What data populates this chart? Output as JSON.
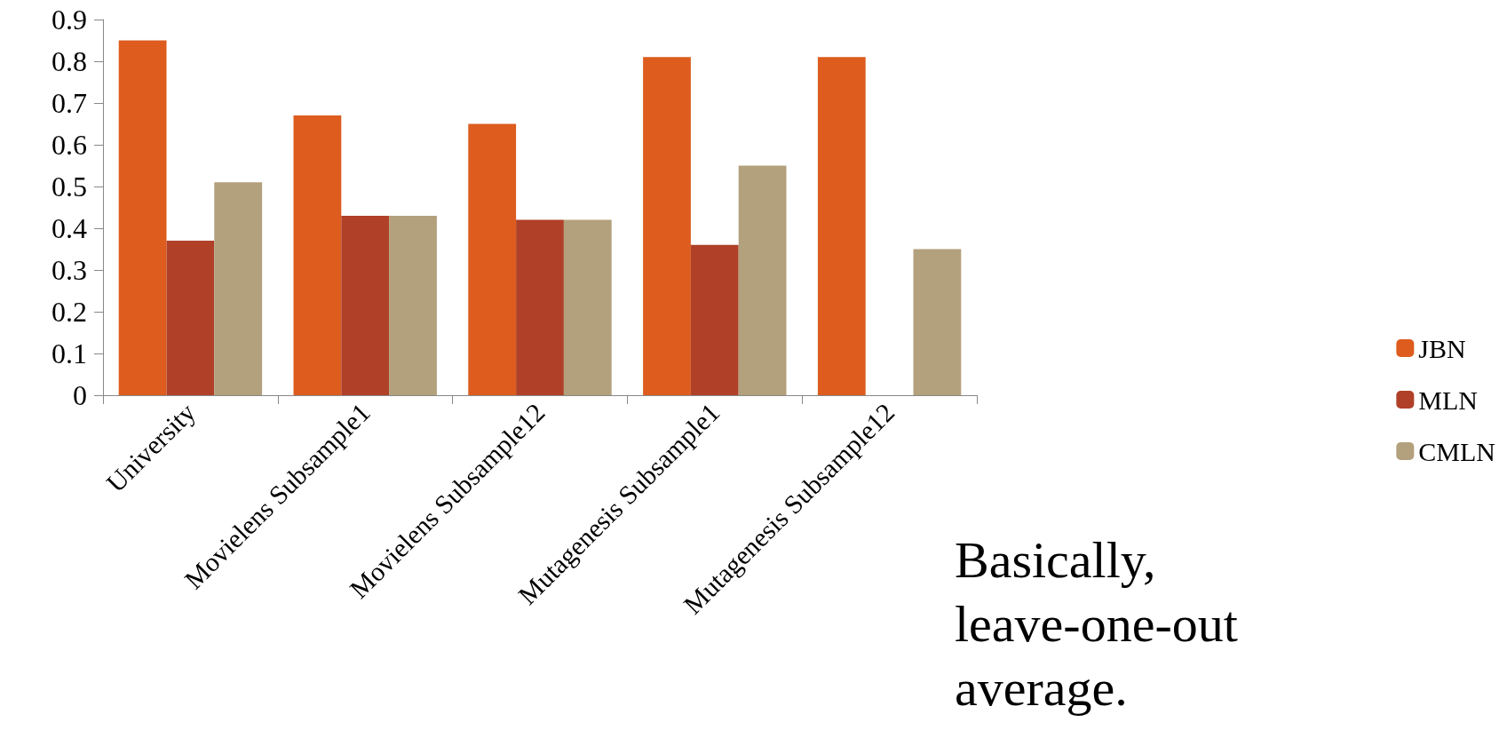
{
  "chart_data": {
    "type": "bar",
    "categories": [
      "University",
      "Movielens Subsample1",
      "Movielens Subsample12",
      "Mutagenesis Subsample1",
      "Mutagenesis Subsample12"
    ],
    "series": [
      {
        "name": "JBN",
        "color": "#dd5c1e",
        "values": [
          0.85,
          0.67,
          0.65,
          0.81,
          0.81
        ]
      },
      {
        "name": "MLN",
        "color": "#b04028",
        "values": [
          0.37,
          0.43,
          0.42,
          0.36,
          null
        ]
      },
      {
        "name": "CMLN",
        "color": "#b3a07c",
        "values": [
          0.51,
          0.43,
          0.42,
          0.55,
          0.35
        ]
      }
    ],
    "ylim": [
      0,
      0.9
    ],
    "yticks": [
      0,
      0.1,
      0.2,
      0.3,
      0.4,
      0.5,
      0.6,
      0.7,
      0.8,
      0.9
    ],
    "grid": false,
    "legend": "right",
    "annotations": [
      "Basically, leave-one-out average."
    ]
  }
}
